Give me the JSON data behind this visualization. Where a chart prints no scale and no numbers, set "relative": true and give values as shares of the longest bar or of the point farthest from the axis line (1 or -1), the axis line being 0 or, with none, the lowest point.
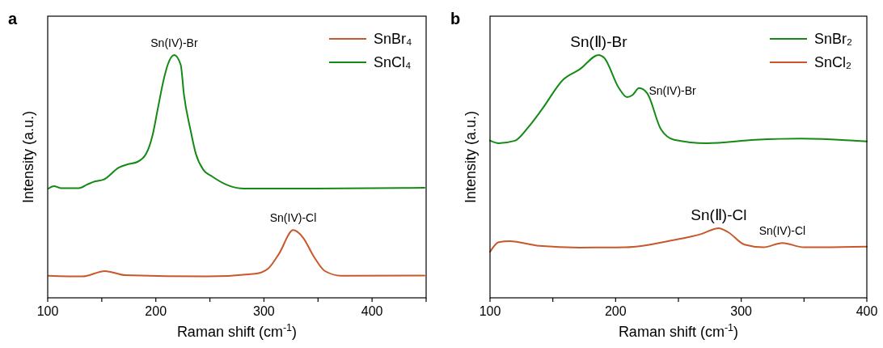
{
  "chart_data": [
    {
      "type": "line",
      "title": "a",
      "xlabel": "Raman shift (cm$^{-1}$)",
      "ylabel": "Intensity (a.u.)",
      "relative": true,
      "legend": "top right",
      "xlim": [
        100,
        450
      ],
      "xticks": [
        100,
        {
          "value": 150,
          "label": null
        },
        200,
        {
          "value": 250,
          "label": null
        },
        300,
        {
          "value": 350,
          "label": null
        },
        400,
        {
          "value": 450,
          "label": null
        }
      ],
      "series": [
        {
          "name": "SnBr₄",
          "color": "#c8582a",
          "x": [
            100.7,
            132,
            153,
            172,
            247,
            292,
            304,
            314,
            327,
            336,
            346,
            356.5,
            371.5,
            448.5
          ],
          "values": [
            0.091,
            0.088,
            0.11,
            0.093,
            0.088,
            0.099,
            0.121,
            0.182,
            0.279,
            0.249,
            0.171,
            0.11,
            0.091,
            0.092
          ]
        },
        {
          "name": "SnCl₄",
          "color": "#138a13",
          "x": [
            100.7,
            105.8,
            112,
            129,
            136.6,
            144,
            151.6,
            166,
            174,
            183,
            191,
            197,
            202,
            207.5,
            211,
            217,
            223,
            226,
            232,
            237,
            244,
            252,
            267,
            282,
            346,
            448.5
          ],
          "values": [
            0.45,
            0.46,
            0.452,
            0.452,
            0.467,
            0.48,
            0.487,
            0.537,
            0.55,
            0.56,
            0.593,
            0.67,
            0.783,
            0.903,
            0.96,
            1,
            0.96,
            0.837,
            0.693,
            0.593,
            0.527,
            0.5,
            0.463,
            0.45,
            0.45,
            0.453
          ]
        }
      ],
      "annotations": [
        {
          "text": "Sn(IV)-Br",
          "x": 217,
          "y": 1
        },
        {
          "text": "Sn(IV)-Cl",
          "x": 327,
          "y": 0.279
        }
      ]
    },
    {
      "type": "line",
      "title": "b",
      "xlabel": "Raman shift (cm$^{-1}$)",
      "ylabel": "Intensity (a.u.)",
      "relative": true,
      "legend": "top right",
      "xlim": [
        100,
        400
      ],
      "xticks": [
        100,
        {
          "value": 150,
          "label": null
        },
        200,
        {
          "value": 250,
          "label": null
        },
        300,
        {
          "value": 350,
          "label": null
        },
        400
      ],
      "series": [
        {
          "name": "SnBr₂",
          "color": "#138a13",
          "x": [
            100,
            106.9,
            119.8,
            130.5,
            141.3,
            158.5,
            171.4,
            186.5,
            190.8,
            202.6,
            209,
            213.4,
            218.7,
            225.2,
            236,
            246.6,
            272.5,
            311.2,
            347.7,
            400
          ],
          "values": [
            0.648,
            0.637,
            0.647,
            0.703,
            0.776,
            0.9,
            0.941,
            1,
            0.989,
            0.864,
            0.827,
            0.835,
            0.864,
            0.842,
            0.695,
            0.651,
            0.637,
            0.651,
            0.656,
            0.644
          ]
        },
        {
          "name": "SnCl₂",
          "color": "#c8582a",
          "x": [
            100,
            106.9,
            115.5,
            139.2,
            171.4,
            208,
            246.6,
            268.2,
            282.1,
            289.7,
            302.6,
            317.6,
            332.7,
            349.9,
            400
          ],
          "values": [
            0.189,
            0.229,
            0.233,
            0.214,
            0.207,
            0.208,
            0.238,
            0.263,
            0.287,
            0.27,
            0.219,
            0.208,
            0.226,
            0.208,
            0.211
          ]
        }
      ],
      "annotations": [
        {
          "text": "Sn(Ⅱ)-Br",
          "x": 186.5,
          "y": 1
        },
        {
          "text": "Sn(IV)-Br",
          "x": 218.7,
          "y": 0.864
        },
        {
          "text": "Sn(Ⅱ)-Cl",
          "x": 282.1,
          "y": 0.287
        },
        {
          "text": "Sn(IV)-Cl",
          "x": 332.7,
          "y": 0.226
        }
      ]
    }
  ]
}
